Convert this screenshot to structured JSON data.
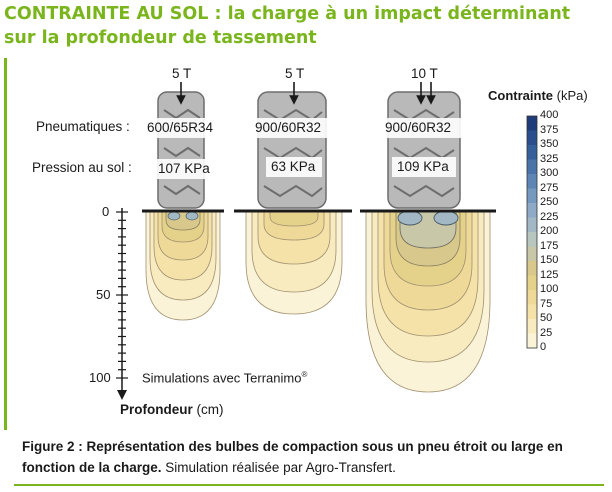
{
  "title": {
    "line1": "CONTRAINTE AU SOL : la charge à un impact déterminant",
    "line2": "sur la profondeur de tassement"
  },
  "row_labels": {
    "tyres": "Pneumatiques :",
    "pressure": "Pression au sol :"
  },
  "tyres": [
    {
      "load": "5 T",
      "size": "600/65R34",
      "pressure": "107 KPa"
    },
    {
      "load": "5 T",
      "size": "900/60R32",
      "pressure": "63 KPa"
    },
    {
      "load": "10 T",
      "size": "900/60R32",
      "pressure": "109 KPa"
    }
  ],
  "depth_axis": {
    "ticks": [
      "0",
      "50",
      "100"
    ],
    "label": "Profondeur",
    "unit": "(cm)"
  },
  "simulation_note": "Simulations avec Terranimo",
  "registered_mark": "®",
  "legend": {
    "title": "Contrainte",
    "unit": "(kPa)",
    "ticks": [
      "400",
      "375",
      "350",
      "325",
      "300",
      "275",
      "250",
      "225",
      "200",
      "175",
      "150",
      "125",
      "100",
      "75",
      "50",
      "25",
      "0"
    ],
    "colors": [
      "#1f3c7a",
      "#2b4f8c",
      "#36609a",
      "#4a74a8",
      "#5e86b4",
      "#7699bf",
      "#8eaac6",
      "#a2b8c4",
      "#b7c6bf",
      "#c8c7a8",
      "#d8c88c",
      "#e5d28a",
      "#eed998",
      "#f4e2a8",
      "#f8ebbf",
      "#fbf3d7",
      "#ffffff"
    ]
  },
  "caption": {
    "bold": "Figure 2 : Représentation des bulbes de compaction sous un pneu étroit ou large en fonction de la charge.",
    "normal": " Simulation réalisée par Agro-Transfert."
  }
}
